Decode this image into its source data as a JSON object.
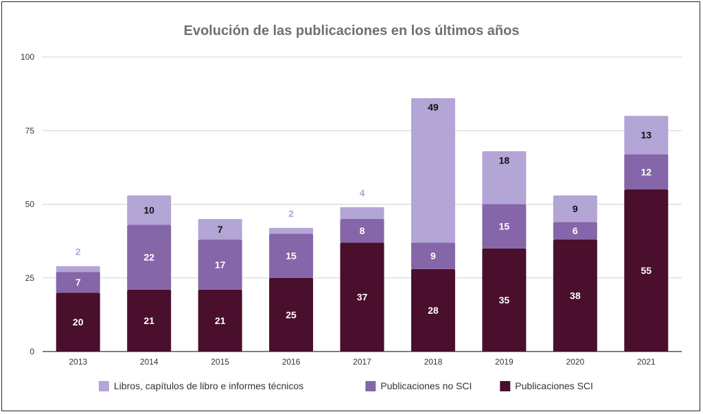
{
  "chart_data": {
    "type": "bar",
    "stacked": true,
    "title": "Evolución de las publicaciones en los últimos años",
    "categories": [
      "2013",
      "2014",
      "2015",
      "2016",
      "2017",
      "2018",
      "2019",
      "2020",
      "2021"
    ],
    "series": [
      {
        "name": "Publicaciones SCI",
        "color": "#4a0f2c",
        "values": [
          20,
          21,
          21,
          25,
          37,
          28,
          35,
          38,
          55
        ]
      },
      {
        "name": "Publicaciones no SCI",
        "color": "#8566a8",
        "values": [
          7,
          22,
          17,
          15,
          8,
          9,
          15,
          6,
          12
        ]
      },
      {
        "name": "Libros, capítulos de libro e informes técnicos",
        "color": "#b3a5d6",
        "values": [
          2,
          10,
          7,
          2,
          4,
          49,
          18,
          9,
          13
        ]
      }
    ],
    "ylim": [
      0,
      100
    ],
    "yticks": [
      0,
      25,
      50,
      75,
      100
    ],
    "grid": true,
    "legend_position": "bottom"
  }
}
